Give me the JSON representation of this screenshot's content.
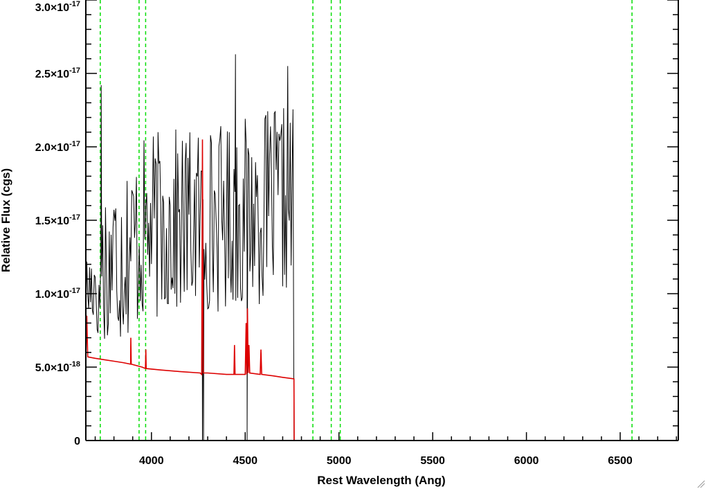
{
  "chart_data": {
    "type": "line",
    "xlabel": "Rest Wavelength (Ang)",
    "ylabel": "Relative Flux (cgs)",
    "xlim": [
      3650,
      6810
    ],
    "ylim": [
      0,
      3e-17
    ],
    "x_ticks": [
      4000,
      4500,
      5000,
      5500,
      6000,
      6500
    ],
    "x_tick_labels": [
      "4000",
      "4500",
      "5000",
      "5500",
      "6000",
      "6500"
    ],
    "y_ticks": [
      {
        "value": 0,
        "mantissa": "0",
        "exponent": ""
      },
      {
        "value": 5e-18,
        "mantissa": "5.0×10",
        "exponent": "-18"
      },
      {
        "value": 1e-17,
        "mantissa": "1.0×10",
        "exponent": "-17"
      },
      {
        "value": 1.5e-17,
        "mantissa": "1.5×10",
        "exponent": "-17"
      },
      {
        "value": 2e-17,
        "mantissa": "2.0×10",
        "exponent": "-17"
      },
      {
        "value": 2.5e-17,
        "mantissa": "2.5×10",
        "exponent": "-17"
      },
      {
        "value": 3e-17,
        "mantissa": "3.0×10",
        "exponent": "-17"
      }
    ],
    "series": [
      {
        "color": "#000000",
        "x_range": [
          3650,
          4760
        ],
        "step": 5,
        "mean_trend": [
          [
            3650,
            1e-17
          ],
          [
            3750,
            1.2e-17
          ],
          [
            4000,
            1.45e-17
          ],
          [
            4500,
            1.55e-17
          ],
          [
            4760,
            1.65e-17
          ]
        ],
        "seed": 17,
        "spikes": [
          [
            3732,
            2.42e-17
          ],
          [
            4448,
            2.63e-17
          ],
          [
            4727,
            2.55e-17
          ]
        ],
        "dips": [
          [
            4272,
            0
          ],
          [
            4278,
            0
          ],
          [
            4510,
            0
          ],
          [
            4760,
            0
          ]
        ],
        "after": [
          [
            4762,
            0
          ],
          [
            6810,
            0
          ]
        ]
      },
      {
        "color": "#dd0000",
        "points": [
          [
            3650,
            5.6e-18
          ],
          [
            3655,
            8.5e-18
          ],
          [
            3660,
            5.7e-18
          ],
          [
            3700,
            5.6e-18
          ],
          [
            3750,
            5.5e-18
          ],
          [
            3800,
            5.4e-18
          ],
          [
            3850,
            5.3e-18
          ],
          [
            3889,
            5.2e-18
          ],
          [
            3890,
            7e-18
          ],
          [
            3892,
            5.2e-18
          ],
          [
            3950,
            5e-18
          ],
          [
            3968,
            4.9e-18
          ],
          [
            3970,
            6.2e-18
          ],
          [
            3972,
            4.9e-18
          ],
          [
            4050,
            4.8e-18
          ],
          [
            4150,
            4.7e-18
          ],
          [
            4260,
            4.6e-18
          ],
          [
            4268,
            4.5e-18
          ],
          [
            4272,
            2.05e-17
          ],
          [
            4276,
            4.6e-18
          ],
          [
            4300,
            4.6e-18
          ],
          [
            4400,
            4.5e-18
          ],
          [
            4440,
            4.5e-18
          ],
          [
            4443,
            6.5e-18
          ],
          [
            4446,
            4.5e-18
          ],
          [
            4500,
            4.5e-18
          ],
          [
            4505,
            8e-18
          ],
          [
            4508,
            4.5e-18
          ],
          [
            4512,
            9e-18
          ],
          [
            4516,
            4.6e-18
          ],
          [
            4520,
            6.5e-18
          ],
          [
            4524,
            4.6e-18
          ],
          [
            4580,
            4.5e-18
          ],
          [
            4584,
            6.2e-18
          ],
          [
            4588,
            4.5e-18
          ],
          [
            4650,
            4.4e-18
          ],
          [
            4700,
            4.3e-18
          ],
          [
            4760,
            4.2e-18
          ],
          [
            4761,
            0
          ],
          [
            6810,
            0
          ]
        ]
      }
    ],
    "reference_lines": {
      "color": "#00dd00",
      "style": "dashed",
      "x": [
        3727,
        3934,
        3969,
        4861,
        4959,
        5007,
        6563
      ]
    },
    "grid": false,
    "legend": "none"
  }
}
